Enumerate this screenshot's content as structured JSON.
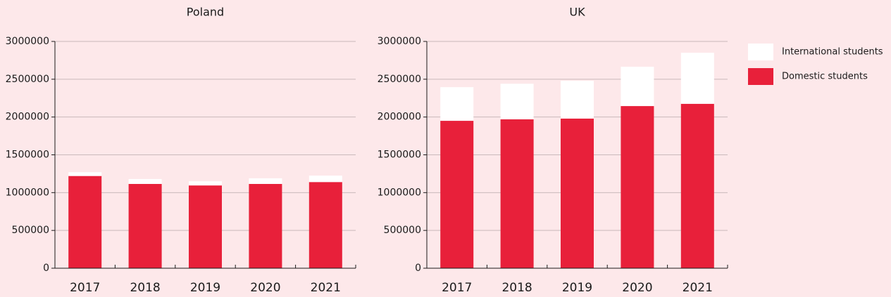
{
  "chart_data": [
    {
      "type": "stacked_bar",
      "title": "Poland",
      "categories": [
        "2017",
        "2018",
        "2019",
        "2020",
        "2021"
      ],
      "series": [
        {
          "color": "#e8203a",
          "values": [
            1220000,
            1115000,
            1095000,
            1115000,
            1140000
          ]
        },
        {
          "color": "#ffffff",
          "values": [
            50000,
            65000,
            55000,
            75000,
            85000
          ]
        }
      ],
      "ylim": [
        0,
        3000000
      ],
      "yticks": [
        0,
        500000,
        1000000,
        1500000,
        2000000,
        2500000,
        3000000
      ],
      "grid": true
    },
    {
      "type": "stacked_bar",
      "title": "UK",
      "categories": [
        "2017",
        "2018",
        "2019",
        "2020",
        "2021"
      ],
      "series": [
        {
          "name": "Domestic students",
          "color": "#e8203a",
          "values": [
            1950000,
            1970000,
            1980000,
            2145000,
            2175000
          ]
        },
        {
          "name": "International students",
          "color": "#ffffff",
          "values": [
            445000,
            470000,
            500000,
            520000,
            675000
          ]
        }
      ],
      "ylim": [
        0,
        3000000
      ],
      "yticks": [
        0,
        500000,
        1000000,
        1500000,
        2000000,
        2500000,
        3000000
      ],
      "grid": true
    }
  ]
}
